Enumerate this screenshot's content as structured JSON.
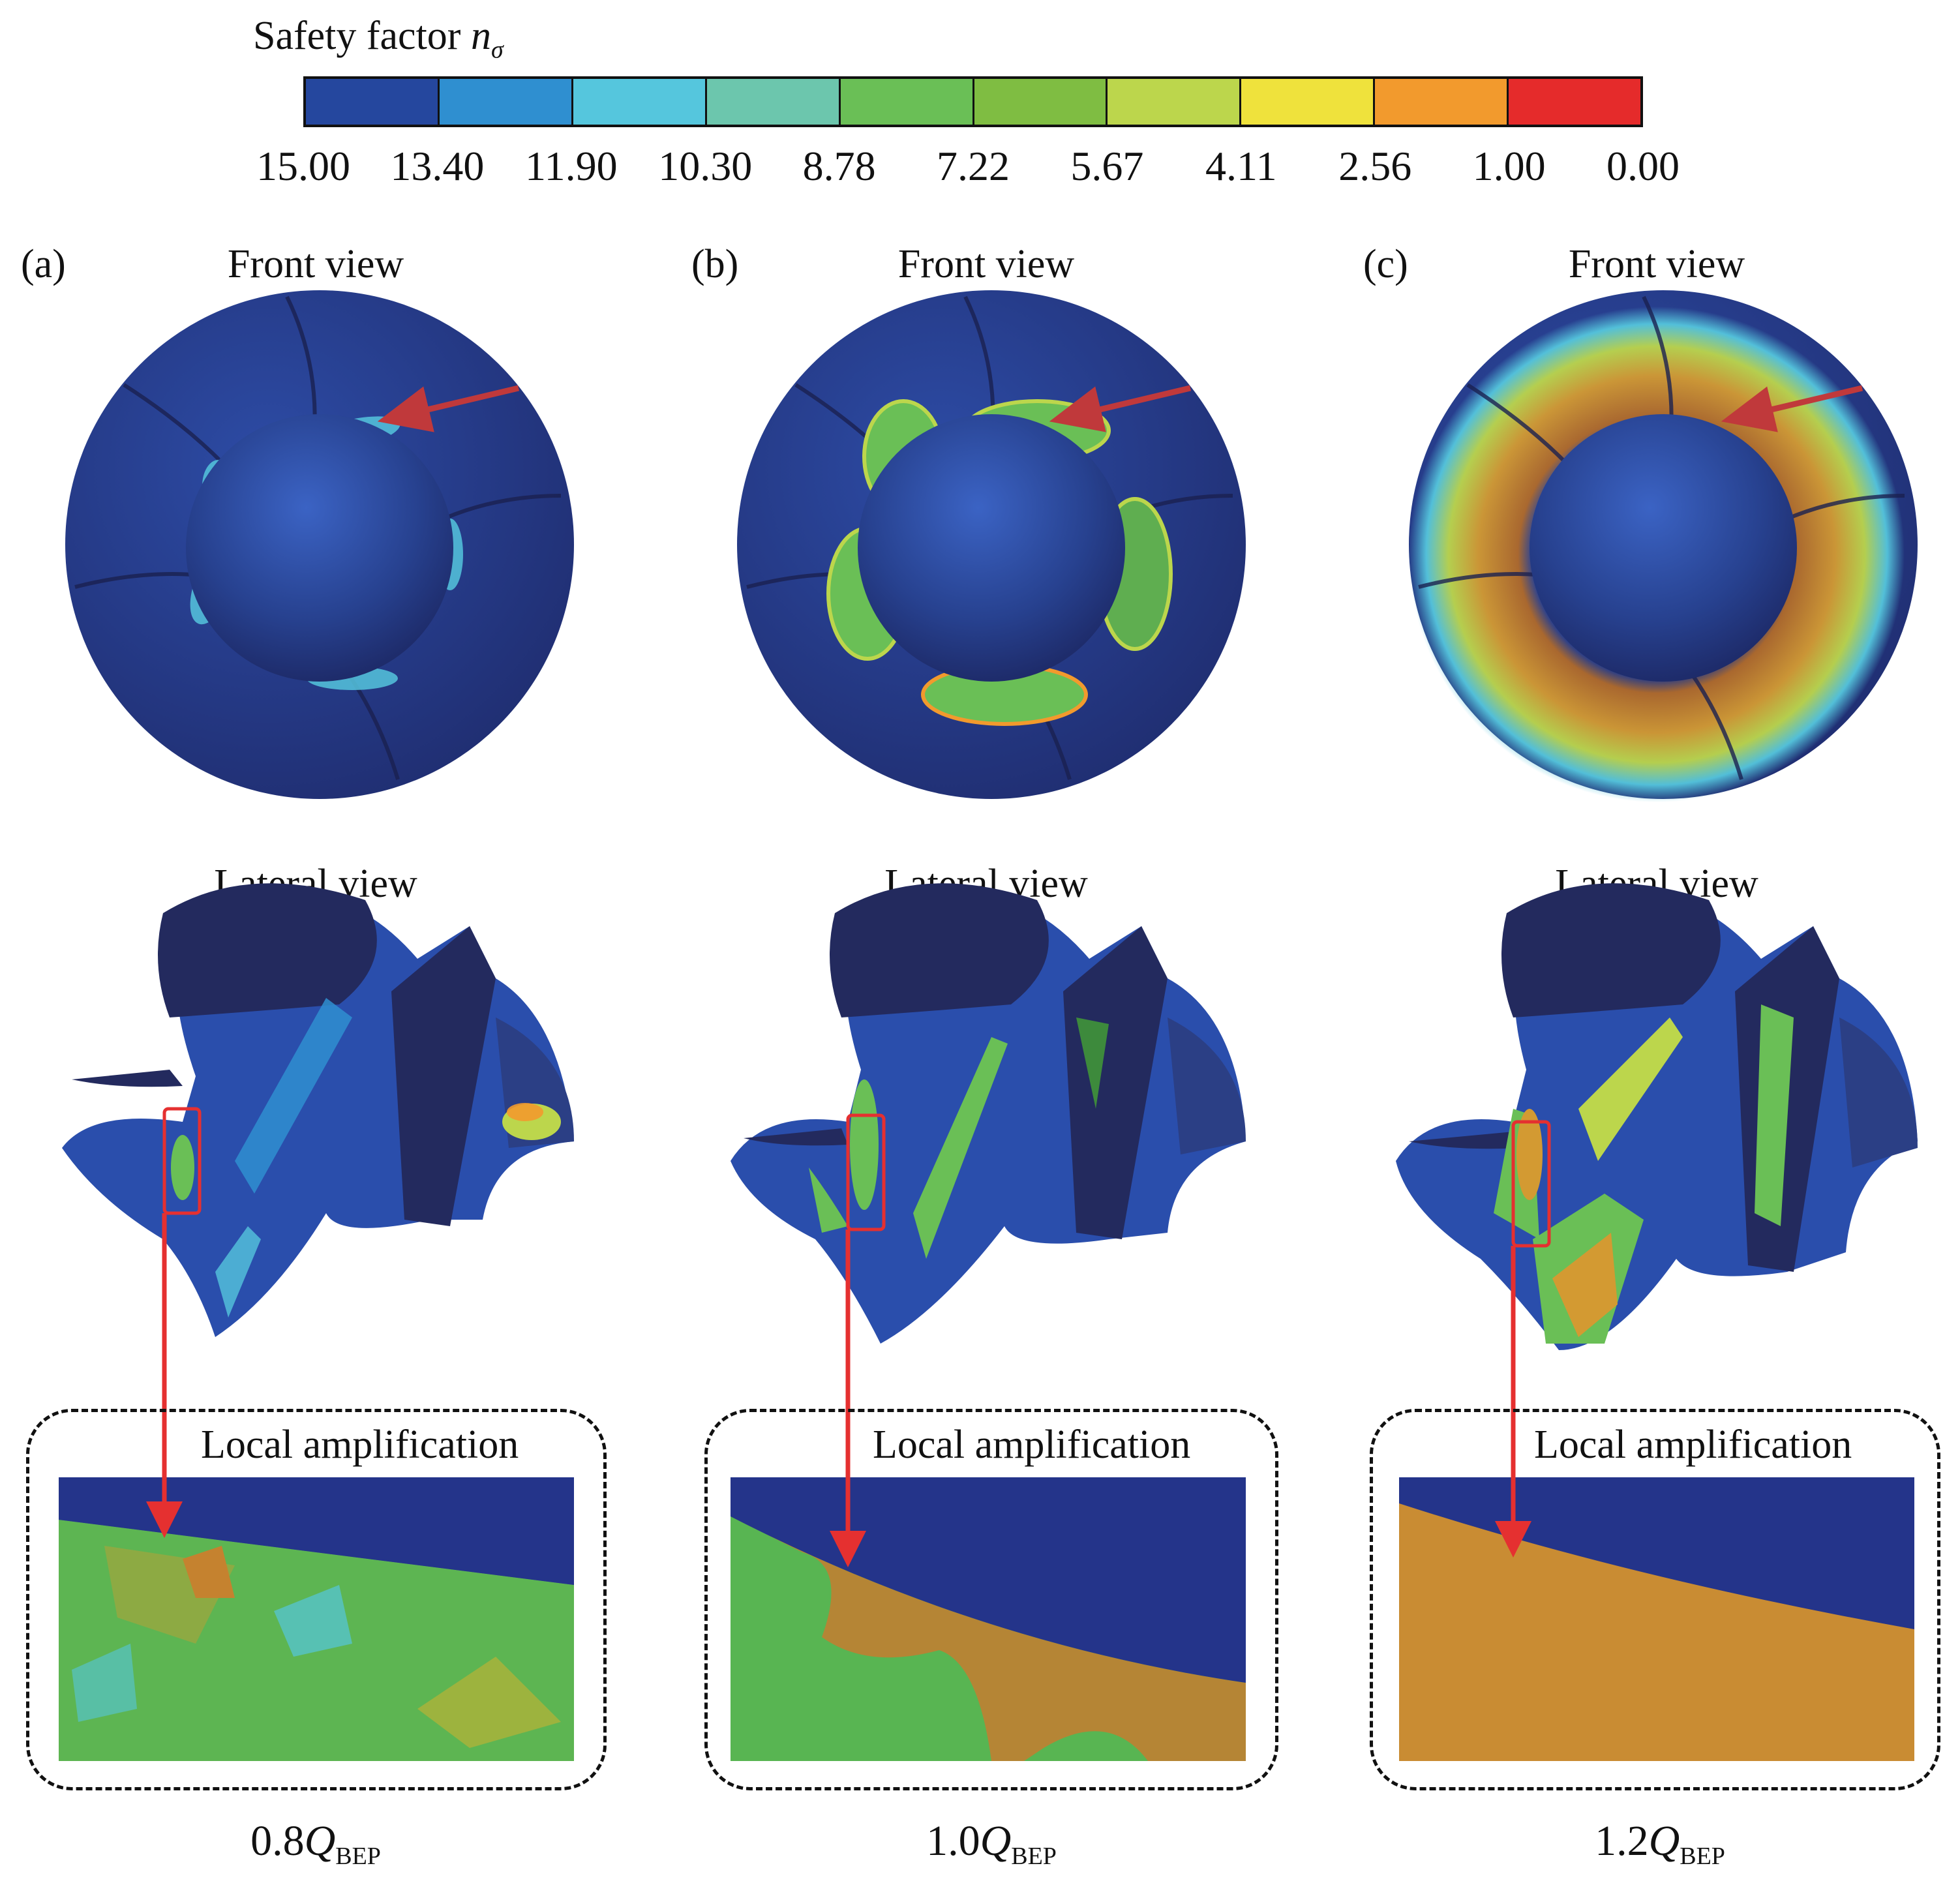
{
  "legend": {
    "title_text": "Safety factor ",
    "symbol": "n",
    "symbol_sub": "σ",
    "ticks": [
      "15.00",
      "13.40",
      "11.90",
      "10.30",
      "8.78",
      "7.22",
      "5.67",
      "4.11",
      "2.56",
      "1.00",
      "0.00"
    ],
    "colors": [
      "#25479e",
      "#2f8fd0",
      "#55c6dd",
      "#6cc6ad",
      "#6abf56",
      "#7fbd42",
      "#bcd64c",
      "#efe23c",
      "#f29a2d",
      "#e52b2b"
    ]
  },
  "panels": [
    {
      "letter": "(a)",
      "front_title": "Front view",
      "lateral_title": "Lateral view",
      "amp_label": "Local amplification",
      "flow_prefix": "0.8",
      "flow_q": "Q",
      "flow_sub": "BEP"
    },
    {
      "letter": "(b)",
      "front_title": "Front view",
      "lateral_title": "Lateral view",
      "amp_label": "Local amplification",
      "flow_prefix": "1.0",
      "flow_q": "Q",
      "flow_sub": "BEP"
    },
    {
      "letter": "(c)",
      "front_title": "Front view",
      "lateral_title": "Lateral view",
      "amp_label": "Local amplification",
      "flow_prefix": "1.2",
      "flow_q": "Q",
      "flow_sub": "BEP"
    }
  ],
  "colors": {
    "impeller_dark": "#232a5e",
    "impeller_mid": "#2a3f8f",
    "arrow_red": "#e53030",
    "arrow_dark_red": "#c0393b"
  }
}
